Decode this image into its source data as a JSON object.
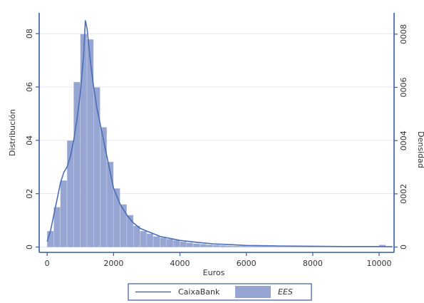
{
  "chart_data": {
    "type": "combo",
    "y_label": "Distribución",
    "x_label": "Euros",
    "y2_label": "Densidad",
    "xlim": [
      -240,
      10450
    ],
    "xticks": [
      0,
      2000,
      4000,
      6000,
      8000,
      10000
    ],
    "ylim": [
      -0.002,
      0.0878
    ],
    "yticks": [
      0,
      {
        "value": 0.02,
        "label": "02"
      },
      {
        "value": 0.04,
        "label": "04"
      },
      {
        "value": 0.06,
        "label": "06"
      },
      {
        "value": 0.08,
        "label": "08"
      }
    ],
    "y2lim": [
      -2e-05,
      0.00088
    ],
    "y2ticks": [
      0,
      {
        "value": 0.0002,
        "label": "0002"
      },
      {
        "value": 0.0004,
        "label": "0004"
      },
      {
        "value": 0.0006,
        "label": "0006"
      },
      {
        "value": 0.0008,
        "label": "0008"
      }
    ],
    "grid": true,
    "series": [
      {
        "name": "CaixaBank",
        "type": "line",
        "color": "#4a6fb5",
        "x": [
          0,
          100,
          200,
          300,
          400,
          500,
          600,
          700,
          800,
          900,
          1000,
          1100,
          1150,
          1200,
          1250,
          1300,
          1400,
          1500,
          1600,
          1700,
          1800,
          1900,
          2000,
          2200,
          2400,
          2600,
          2800,
          3000,
          3200,
          3400,
          3600,
          3800,
          4000,
          4500,
          5000,
          5500,
          6000,
          7000,
          8000,
          9000,
          10000,
          10400
        ],
        "values": [
          0.002,
          0.006,
          0.012,
          0.018,
          0.024,
          0.028,
          0.03,
          0.034,
          0.04,
          0.048,
          0.058,
          0.072,
          0.085,
          0.082,
          0.076,
          0.07,
          0.06,
          0.052,
          0.046,
          0.04,
          0.034,
          0.028,
          0.022,
          0.016,
          0.012,
          0.009,
          0.007,
          0.006,
          0.005,
          0.004,
          0.0035,
          0.003,
          0.0025,
          0.0018,
          0.0012,
          0.0009,
          0.0006,
          0.0004,
          0.0003,
          0.0002,
          0.0002,
          0.0001
        ]
      },
      {
        "name": "EES",
        "type": "histogram",
        "axis": "y2",
        "color": "#97a5d3",
        "bins": [
          0,
          200,
          400,
          600,
          800,
          1000,
          1200,
          1400,
          1600,
          1800,
          2000,
          2200,
          2400,
          2600,
          2800,
          3000,
          3200,
          3400,
          3600,
          3800,
          4000,
          4200,
          4400,
          4600,
          4800,
          5000,
          5200,
          5400,
          5600,
          5800,
          6000,
          6200,
          6400,
          6600,
          6800,
          7000,
          7200,
          7400,
          7600,
          7800,
          8000,
          8200,
          8400,
          8600,
          8800,
          9000,
          9200,
          9400,
          9600,
          9800,
          10000,
          10200,
          10400
        ],
        "counts": [
          6e-05,
          0.00015,
          0.00025,
          0.0004,
          0.00062,
          0.0008,
          0.00078,
          0.0006,
          0.00045,
          0.00032,
          0.00022,
          0.00016,
          0.00012,
          8e-05,
          6e-05,
          5e-05,
          4e-05,
          3.5e-05,
          3e-05,
          2.5e-05,
          2e-05,
          1.6e-05,
          1.3e-05,
          1.1e-05,
          9e-06,
          8e-06,
          6e-06,
          5e-06,
          4e-06,
          4e-06,
          3e-06,
          3e-06,
          3e-06,
          2e-06,
          2e-06,
          2e-06,
          2e-06,
          2e-06,
          2e-06,
          2e-06,
          1e-06,
          1e-06,
          1e-06,
          1e-06,
          1e-06,
          1e-06,
          1e-06,
          1e-06,
          1e-06,
          1e-06,
          8e-06,
          1e-06
        ]
      }
    ],
    "legend": "bottom"
  }
}
